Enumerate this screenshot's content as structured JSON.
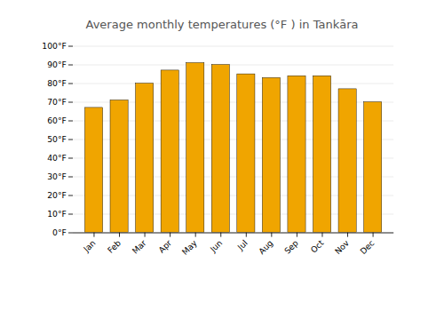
{
  "chart_data": {
    "type": "bar",
    "title": "Average monthly temperatures (°F ) in Tankāra",
    "categories": [
      "Jan",
      "Feb",
      "Mar",
      "Apr",
      "May",
      "Jun",
      "Jul",
      "Aug",
      "Sep",
      "Oct",
      "Nov",
      "Dec"
    ],
    "values": [
      67,
      71,
      80,
      87,
      91,
      90,
      85,
      83,
      84,
      84,
      77,
      70
    ],
    "color": "#F0A500",
    "ylim": [
      0,
      100
    ],
    "yticks": [
      {
        "value": 0,
        "label": "0°F"
      },
      {
        "value": 10,
        "label": "10°F"
      },
      {
        "value": 20,
        "label": "20°F"
      },
      {
        "value": 30,
        "label": "30°F"
      },
      {
        "value": 40,
        "label": "40°F"
      },
      {
        "value": 50,
        "label": "50°F"
      },
      {
        "value": 60,
        "label": "60°F"
      },
      {
        "value": 70,
        "label": "70°F"
      },
      {
        "value": 80,
        "label": "80°F"
      },
      {
        "value": 90,
        "label": "90°F"
      },
      {
        "value": 100,
        "label": "100°F"
      }
    ],
    "grid": true
  }
}
